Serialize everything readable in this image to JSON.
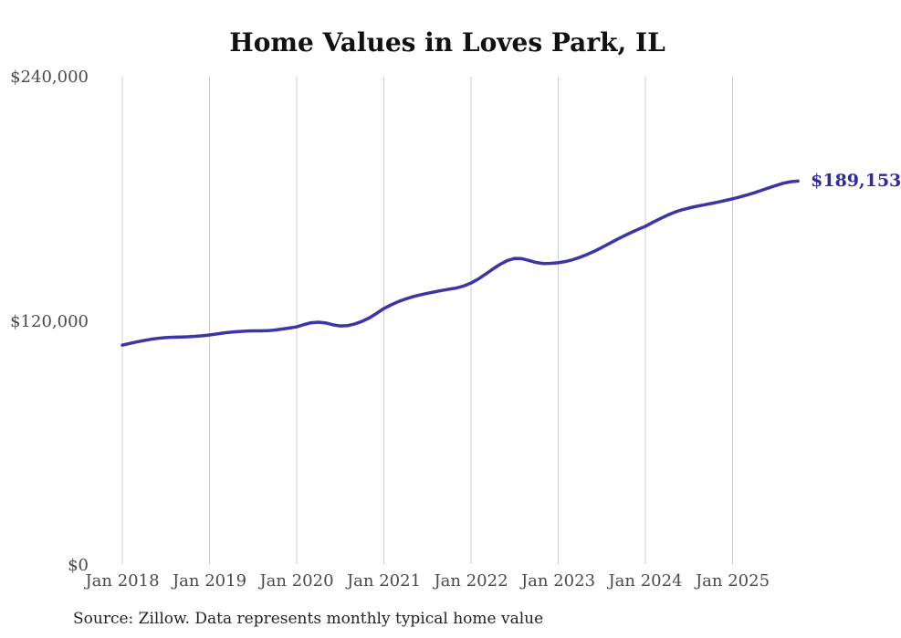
{
  "title": "Home Values in Loves Park, IL",
  "source_note": "Source: Zillow. Data represents monthly typical home value",
  "end_label": "$189,153",
  "colors": {
    "line": "#3b35a6",
    "end_label": "#2e2b9e",
    "gridline": "#cccccc",
    "axis_text": "#4a4a4a",
    "title_text": "#111111",
    "source_text": "#222222",
    "background": "#ffffff"
  },
  "chart_data": {
    "type": "line",
    "title": "Home Values in Loves Park, IL",
    "xlabel": "",
    "ylabel": "",
    "x_tick_labels": [
      "Jan 2018",
      "Jan 2019",
      "Jan 2020",
      "Jan 2021",
      "Jan 2022",
      "Jan 2023",
      "Jan 2024",
      "Jan 2025"
    ],
    "y_tick_labels": [
      "$240,000",
      "$120,000",
      "$0"
    ],
    "y_tick_values": [
      240000,
      120000,
      0
    ],
    "ylim": [
      0,
      240000
    ],
    "grid": "vertical-only",
    "legend": "none",
    "x_start_month": "2018-01",
    "x_end_month": "2025-10",
    "points_per_year": 12,
    "last_value": 189153,
    "series": [
      {
        "name": "Typical home value",
        "values": [
          108500,
          109300,
          110100,
          110800,
          111400,
          111900,
          112200,
          112400,
          112500,
          112600,
          112800,
          113100,
          113500,
          114000,
          114500,
          114900,
          115200,
          115400,
          115500,
          115500,
          115600,
          115900,
          116400,
          116900,
          117500,
          118600,
          119500,
          119800,
          119400,
          118500,
          117900,
          118100,
          118900,
          120200,
          121900,
          124100,
          126500,
          128300,
          129900,
          131200,
          132300,
          133200,
          134000,
          134700,
          135400,
          136000,
          136600,
          137600,
          139000,
          141000,
          143400,
          145900,
          148200,
          150100,
          151100,
          151000,
          150100,
          149100,
          148600,
          148700,
          149000,
          149600,
          150500,
          151700,
          153100,
          154700,
          156500,
          158400,
          160300,
          162100,
          163800,
          165400,
          166900,
          168800,
          170600,
          172300,
          173800,
          175000,
          175900,
          176700,
          177400,
          178100,
          178800,
          179600,
          180400,
          181300,
          182300,
          183400,
          184600,
          185800,
          187000,
          188100,
          188800,
          189153
        ]
      }
    ]
  }
}
